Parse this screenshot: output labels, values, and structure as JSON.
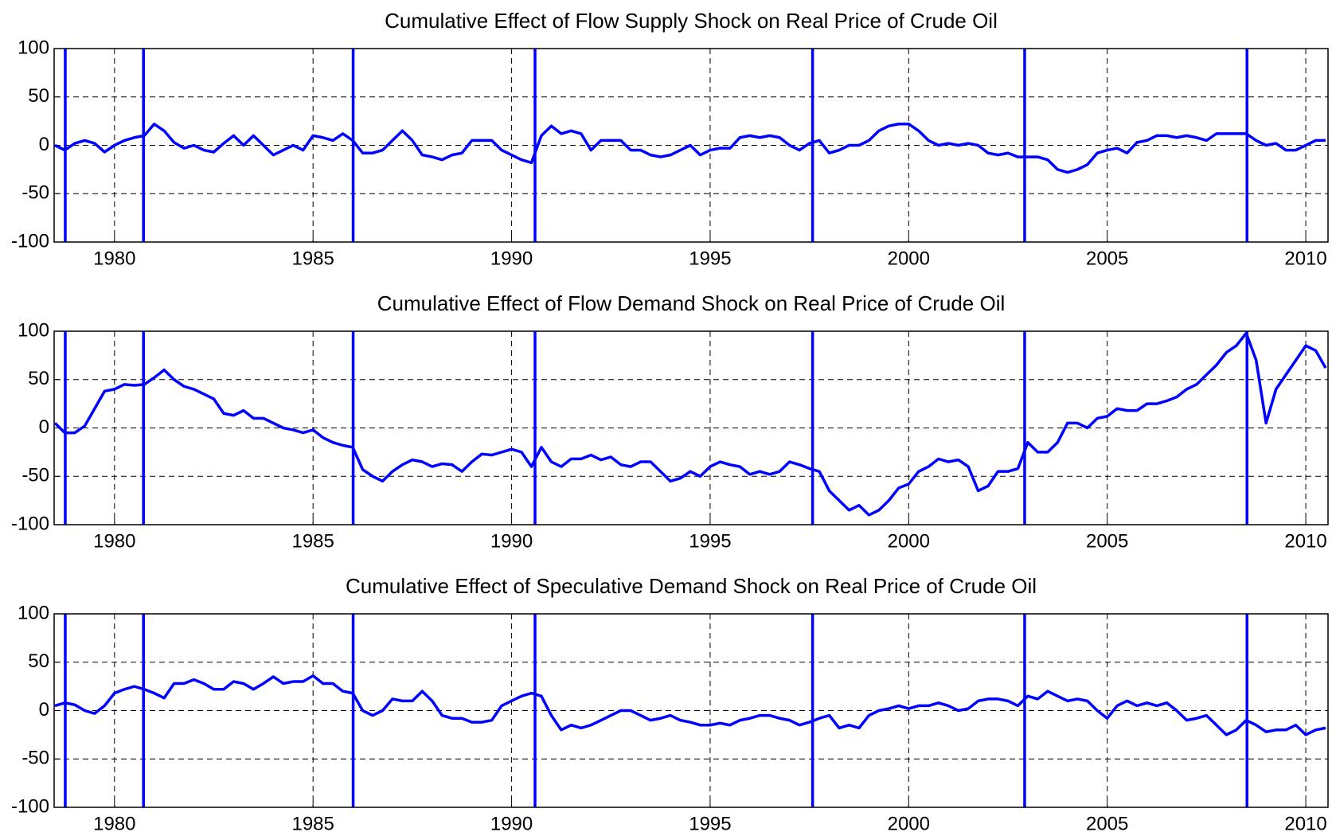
{
  "chart_data": [
    {
      "type": "line",
      "title": "Cumulative Effect of Flow Supply Shock on Real Price of Crude Oil",
      "color": "#0000ff",
      "grid": true,
      "xlim": [
        1978.48,
        2010.56
      ],
      "xticks": [
        1980,
        1985,
        1990,
        1995,
        2000,
        2005,
        2010
      ],
      "ylim": [
        -100,
        100
      ],
      "yticks": [
        -100,
        -50,
        0,
        50,
        100
      ],
      "vlines": [
        1978.76,
        1980.73,
        1986.01,
        1990.59,
        1997.58,
        2002.92,
        2008.52
      ],
      "x": [
        1978.5,
        1978.75,
        1979,
        1979.25,
        1979.5,
        1979.75,
        1980,
        1980.25,
        1980.5,
        1980.75,
        1981,
        1981.25,
        1981.5,
        1981.75,
        1982,
        1982.25,
        1982.5,
        1982.75,
        1983,
        1983.25,
        1983.5,
        1983.75,
        1984,
        1984.25,
        1984.5,
        1984.75,
        1985,
        1985.25,
        1985.5,
        1985.75,
        1986,
        1986.25,
        1986.5,
        1986.75,
        1987,
        1987.25,
        1987.5,
        1987.75,
        1988,
        1988.25,
        1988.5,
        1988.75,
        1989,
        1989.25,
        1989.5,
        1989.75,
        1990,
        1990.25,
        1990.5,
        1990.75,
        1991,
        1991.25,
        1991.5,
        1991.75,
        1992,
        1992.25,
        1992.5,
        1992.75,
        1993,
        1993.25,
        1993.5,
        1993.75,
        1994,
        1994.25,
        1994.5,
        1994.75,
        1995,
        1995.25,
        1995.5,
        1995.75,
        1996,
        1996.25,
        1996.5,
        1996.75,
        1997,
        1997.25,
        1997.5,
        1997.75,
        1998,
        1998.25,
        1998.5,
        1998.75,
        1999,
        1999.25,
        1999.5,
        1999.75,
        2000,
        2000.25,
        2000.5,
        2000.75,
        2001,
        2001.25,
        2001.5,
        2001.75,
        2002,
        2002.25,
        2002.5,
        2002.75,
        2003,
        2003.25,
        2003.5,
        2003.75,
        2004,
        2004.25,
        2004.5,
        2004.75,
        2005,
        2005.25,
        2005.5,
        2005.75,
        2006,
        2006.25,
        2006.5,
        2006.75,
        2007,
        2007.25,
        2007.5,
        2007.75,
        2008,
        2008.25,
        2008.5,
        2008.75,
        2009,
        2009.25,
        2009.5,
        2009.75,
        2010,
        2010.25,
        2010.5
      ],
      "values": [
        0,
        -5,
        2,
        5,
        2,
        -7,
        0,
        5,
        8,
        10,
        22,
        15,
        3,
        -3,
        0,
        -5,
        -7,
        2,
        10,
        0,
        10,
        0,
        -10,
        -5,
        0,
        -5,
        10,
        8,
        5,
        12,
        5,
        -8,
        -8,
        -5,
        5,
        15,
        5,
        -10,
        -12,
        -15,
        -10,
        -8,
        5,
        5,
        5,
        -5,
        -10,
        -15,
        -18,
        10,
        20,
        12,
        15,
        12,
        -5,
        5,
        5,
        5,
        -5,
        -5,
        -10,
        -12,
        -10,
        -5,
        0,
        -10,
        -5,
        -3,
        -3,
        8,
        10,
        8,
        10,
        8,
        0,
        -5,
        2,
        5,
        -8,
        -5,
        0,
        0,
        5,
        15,
        20,
        22,
        22,
        15,
        5,
        0,
        2,
        0,
        2,
        0,
        -8,
        -10,
        -8,
        -12,
        -12,
        -12,
        -15,
        -25,
        -28,
        -25,
        -20,
        -8,
        -5,
        -3,
        -8,
        3,
        5,
        10,
        10,
        8,
        10,
        8,
        5,
        12,
        12,
        12,
        12,
        5,
        0,
        2,
        -5,
        -5,
        0,
        5,
        5
      ]
    },
    {
      "type": "line",
      "title": "Cumulative Effect of Flow Demand Shock on Real Price of Crude Oil",
      "color": "#0000ff",
      "grid": true,
      "xlim": [
        1978.48,
        2010.56
      ],
      "xticks": [
        1980,
        1985,
        1990,
        1995,
        2000,
        2005,
        2010
      ],
      "ylim": [
        -100,
        100
      ],
      "yticks": [
        -100,
        -50,
        0,
        50,
        100
      ],
      "vlines": [
        1978.76,
        1980.73,
        1986.01,
        1990.59,
        1997.58,
        2002.92,
        2008.52
      ],
      "x": [
        1978.5,
        1978.75,
        1979,
        1979.25,
        1979.5,
        1979.75,
        1980,
        1980.25,
        1980.5,
        1980.75,
        1981,
        1981.25,
        1981.5,
        1981.75,
        1982,
        1982.25,
        1982.5,
        1982.75,
        1983,
        1983.25,
        1983.5,
        1983.75,
        1984,
        1984.25,
        1984.5,
        1984.75,
        1985,
        1985.25,
        1985.5,
        1985.75,
        1986,
        1986.25,
        1986.5,
        1986.75,
        1987,
        1987.25,
        1987.5,
        1987.75,
        1988,
        1988.25,
        1988.5,
        1988.75,
        1989,
        1989.25,
        1989.5,
        1989.75,
        1990,
        1990.25,
        1990.5,
        1990.75,
        1991,
        1991.25,
        1991.5,
        1991.75,
        1992,
        1992.25,
        1992.5,
        1992.75,
        1993,
        1993.25,
        1993.5,
        1993.75,
        1994,
        1994.25,
        1994.5,
        1994.75,
        1995,
        1995.25,
        1995.5,
        1995.75,
        1996,
        1996.25,
        1996.5,
        1996.75,
        1997,
        1997.25,
        1997.5,
        1997.75,
        1998,
        1998.25,
        1998.5,
        1998.75,
        1999,
        1999.25,
        1999.5,
        1999.75,
        2000,
        2000.25,
        2000.5,
        2000.75,
        2001,
        2001.25,
        2001.5,
        2001.75,
        2002,
        2002.25,
        2002.5,
        2002.75,
        2003,
        2003.25,
        2003.5,
        2003.75,
        2004,
        2004.25,
        2004.5,
        2004.75,
        2005,
        2005.25,
        2005.5,
        2005.75,
        2006,
        2006.25,
        2006.5,
        2006.75,
        2007,
        2007.25,
        2007.5,
        2007.75,
        2008,
        2008.25,
        2008.5,
        2008.75,
        2009,
        2009.25,
        2009.5,
        2009.75,
        2010,
        2010.25,
        2010.5
      ],
      "values": [
        5,
        -5,
        -5,
        2,
        20,
        38,
        40,
        45,
        44,
        45,
        52,
        60,
        50,
        43,
        40,
        35,
        30,
        15,
        13,
        18,
        10,
        10,
        5,
        0,
        -2,
        -5,
        -2,
        -10,
        -15,
        -18,
        -20,
        -43,
        -50,
        -55,
        -45,
        -38,
        -33,
        -35,
        -40,
        -37,
        -38,
        -45,
        -35,
        -27,
        -28,
        -25,
        -22,
        -25,
        -40,
        -20,
        -35,
        -40,
        -32,
        -32,
        -28,
        -33,
        -30,
        -38,
        -40,
        -35,
        -35,
        -45,
        -55,
        -52,
        -45,
        -50,
        -40,
        -35,
        -38,
        -40,
        -48,
        -45,
        -48,
        -45,
        -35,
        -38,
        -42,
        -45,
        -65,
        -75,
        -85,
        -80,
        -90,
        -85,
        -75,
        -62,
        -58,
        -45,
        -40,
        -32,
        -35,
        -33,
        -40,
        -65,
        -60,
        -45,
        -45,
        -42,
        -15,
        -25,
        -25,
        -15,
        5,
        5,
        0,
        10,
        12,
        20,
        18,
        18,
        25,
        25,
        28,
        32,
        40,
        45,
        55,
        65,
        78,
        85,
        98,
        70,
        5,
        40,
        55,
        70,
        85,
        80,
        62
      ]
    },
    {
      "type": "line",
      "title": "Cumulative Effect of Speculative Demand Shock on Real Price of Crude Oil",
      "color": "#0000ff",
      "grid": true,
      "xlim": [
        1978.48,
        2010.56
      ],
      "xticks": [
        1980,
        1985,
        1990,
        1995,
        2000,
        2005,
        2010
      ],
      "ylim": [
        -100,
        100
      ],
      "yticks": [
        -100,
        -50,
        0,
        50,
        100
      ],
      "vlines": [
        1978.76,
        1980.73,
        1986.01,
        1990.59,
        1997.58,
        2002.92,
        2008.52
      ],
      "x": [
        1978.5,
        1978.75,
        1979,
        1979.25,
        1979.5,
        1979.75,
        1980,
        1980.25,
        1980.5,
        1980.75,
        1981,
        1981.25,
        1981.5,
        1981.75,
        1982,
        1982.25,
        1982.5,
        1982.75,
        1983,
        1983.25,
        1983.5,
        1983.75,
        1984,
        1984.25,
        1984.5,
        1984.75,
        1985,
        1985.25,
        1985.5,
        1985.75,
        1986,
        1986.25,
        1986.5,
        1986.75,
        1987,
        1987.25,
        1987.5,
        1987.75,
        1988,
        1988.25,
        1988.5,
        1988.75,
        1989,
        1989.25,
        1989.5,
        1989.75,
        1990,
        1990.25,
        1990.5,
        1990.75,
        1991,
        1991.25,
        1991.5,
        1991.75,
        1992,
        1992.25,
        1992.5,
        1992.75,
        1993,
        1993.25,
        1993.5,
        1993.75,
        1994,
        1994.25,
        1994.5,
        1994.75,
        1995,
        1995.25,
        1995.5,
        1995.75,
        1996,
        1996.25,
        1996.5,
        1996.75,
        1997,
        1997.25,
        1997.5,
        1997.75,
        1998,
        1998.25,
        1998.5,
        1998.75,
        1999,
        1999.25,
        1999.5,
        1999.75,
        2000,
        2000.25,
        2000.5,
        2000.75,
        2001,
        2001.25,
        2001.5,
        2001.75,
        2002,
        2002.25,
        2002.5,
        2002.75,
        2003,
        2003.25,
        2003.5,
        2003.75,
        2004,
        2004.25,
        2004.5,
        2004.75,
        2005,
        2005.25,
        2005.5,
        2005.75,
        2006,
        2006.25,
        2006.5,
        2006.75,
        2007,
        2007.25,
        2007.5,
        2007.75,
        2008,
        2008.25,
        2008.5,
        2008.75,
        2009,
        2009.25,
        2009.5,
        2009.75,
        2010,
        2010.25,
        2010.5
      ],
      "values": [
        5,
        8,
        6,
        0,
        -3,
        5,
        18,
        22,
        25,
        22,
        18,
        13,
        28,
        28,
        32,
        28,
        22,
        22,
        30,
        28,
        22,
        28,
        35,
        28,
        30,
        30,
        36,
        28,
        28,
        20,
        18,
        0,
        -5,
        0,
        12,
        10,
        10,
        20,
        10,
        -5,
        -8,
        -8,
        -12,
        -12,
        -10,
        5,
        10,
        15,
        18,
        15,
        -5,
        -20,
        -15,
        -18,
        -15,
        -10,
        -5,
        0,
        0,
        -5,
        -10,
        -8,
        -5,
        -10,
        -12,
        -15,
        -15,
        -13,
        -15,
        -10,
        -8,
        -5,
        -5,
        -8,
        -10,
        -15,
        -12,
        -8,
        -5,
        -18,
        -15,
        -18,
        -5,
        0,
        2,
        5,
        2,
        5,
        5,
        8,
        5,
        0,
        2,
        10,
        12,
        12,
        10,
        5,
        15,
        12,
        20,
        15,
        10,
        12,
        10,
        0,
        -8,
        5,
        10,
        5,
        8,
        5,
        8,
        0,
        -10,
        -8,
        -5,
        -15,
        -25,
        -20,
        -10,
        -15,
        -22,
        -20,
        -20,
        -15,
        -25,
        -20,
        -18
      ]
    }
  ]
}
